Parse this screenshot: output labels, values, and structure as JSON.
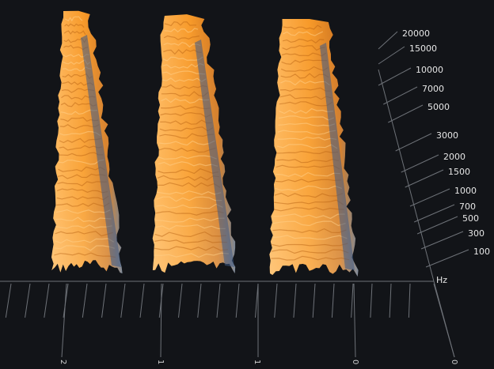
{
  "viewer": {
    "type": "3d-spectrogram",
    "background": "#121418",
    "grid_color": "#6e7278",
    "surface_colors": {
      "base": "#f7941d",
      "highlight": "#ffd089",
      "shadow": "#3c5a86"
    }
  },
  "frequency_axis": {
    "unit": "Hz",
    "ticks": [
      "20000",
      "15000",
      "10000",
      "7000",
      "5000",
      "3000",
      "2000",
      "1500",
      "1000",
      "700",
      "500",
      "300",
      "100"
    ]
  },
  "time_axis": {
    "labels": [
      "2",
      "1",
      "1",
      "0",
      "0"
    ]
  },
  "bursts": 3
}
